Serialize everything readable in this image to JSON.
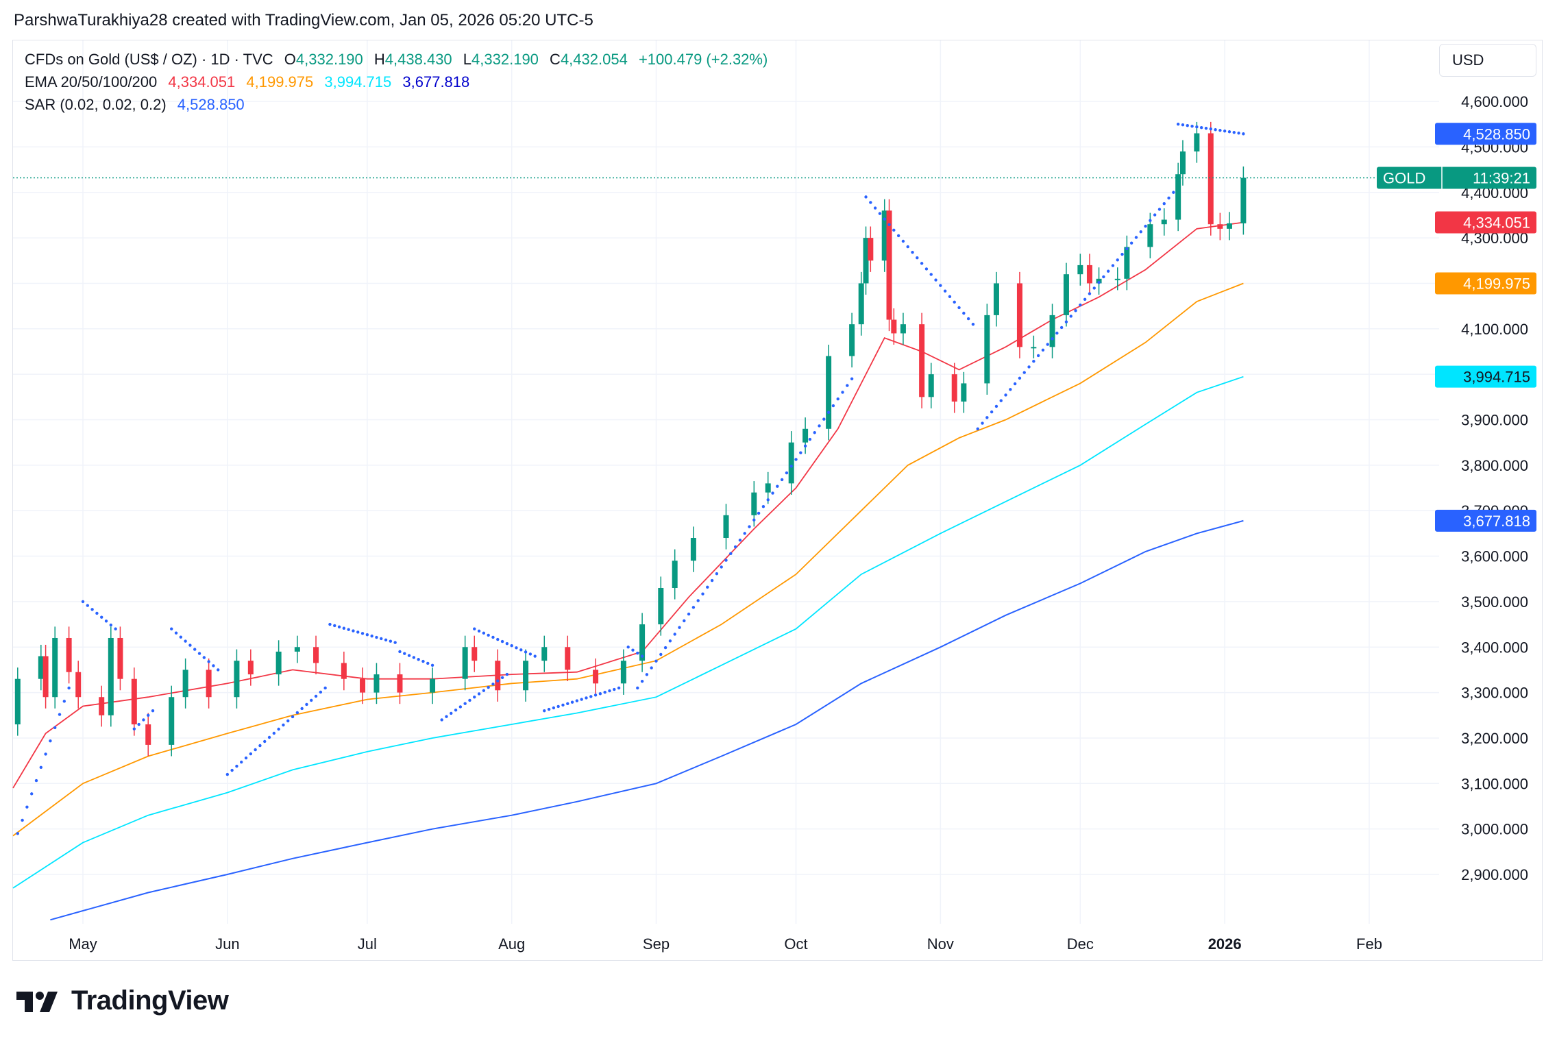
{
  "header": {
    "credit": "ParshwaTurakhiya28 created with TradingView.com, Jan 05, 2026 05:20 UTC-5"
  },
  "legend": {
    "symbol": "CFDs on Gold (US$ / OZ) · 1D · TVC",
    "open_label": "O",
    "open": "4,332.190",
    "high_label": "H",
    "high": "4,438.430",
    "low_label": "L",
    "low": "4,332.190",
    "close_label": "C",
    "close": "4,432.054",
    "change": "+100.479 (+2.32%)",
    "ema_label": "EMA 20/50/100/200",
    "ema20": "4,334.051",
    "ema50": "4,199.975",
    "ema100": "3,994.715",
    "ema200": "3,677.818",
    "sar_label": "SAR (0.02, 0.02, 0.2)",
    "sar": "4,528.850"
  },
  "currency_button": "USD",
  "logo_text": "TradingView",
  "colors": {
    "up": "#089981",
    "down": "#f23645",
    "ema20": "#f23645",
    "ema50": "#ff9800",
    "ema100": "#00e5ff",
    "ema200": "#2962ff",
    "sar": "#2962ff",
    "grid": "#f0f3fa"
  },
  "chart_data": {
    "type": "candlestick",
    "title": "CFDs on Gold (US$ / OZ) · 1D · TVC",
    "ylim": [
      2800,
      4650
    ],
    "y_ticks": [
      2900,
      3000,
      3100,
      3200,
      3300,
      3400,
      3500,
      3600,
      3700,
      3800,
      3900,
      4000,
      4100,
      4200,
      4300,
      4400,
      4500,
      4600
    ],
    "y_tick_labels": [
      "2,900.000",
      "3,000.000",
      "3,100.000",
      "3,200.000",
      "3,300.000",
      "3,400.000",
      "3,500.000",
      "3,600.000",
      "3,700.000",
      "3,800.000",
      "3,900.000",
      "4,000.000",
      "4,100.000",
      "4,200.000",
      "4,300.000",
      "4,400.000",
      "4,500.000",
      "4,600.000"
    ],
    "x_range": [
      "2025-04-16",
      "2026-02-16"
    ],
    "x_ticks": [
      {
        "date": "2025-05-01",
        "label": "May"
      },
      {
        "date": "2025-06-01",
        "label": "Jun"
      },
      {
        "date": "2025-07-01",
        "label": "Jul"
      },
      {
        "date": "2025-08-01",
        "label": "Aug"
      },
      {
        "date": "2025-09-01",
        "label": "Sep"
      },
      {
        "date": "2025-10-01",
        "label": "Oct"
      },
      {
        "date": "2025-11-01",
        "label": "Nov"
      },
      {
        "date": "2025-12-01",
        "label": "Dec"
      },
      {
        "date": "2026-01-01",
        "label": "2026"
      },
      {
        "date": "2026-02-01",
        "label": "Feb"
      }
    ],
    "grid": true,
    "close_series": [
      [
        "2025-04-16",
        3230
      ],
      [
        "2025-04-17",
        3330
      ],
      [
        "2025-04-22",
        3380
      ],
      [
        "2025-04-23",
        3290
      ],
      [
        "2025-04-25",
        3420
      ],
      [
        "2025-04-28",
        3345
      ],
      [
        "2025-04-30",
        3290
      ],
      [
        "2025-05-05",
        3250
      ],
      [
        "2025-05-07",
        3420
      ],
      [
        "2025-05-09",
        3330
      ],
      [
        "2025-05-12",
        3230
      ],
      [
        "2025-05-15",
        3185
      ],
      [
        "2025-05-20",
        3290
      ],
      [
        "2025-05-23",
        3350
      ],
      [
        "2025-05-28",
        3290
      ],
      [
        "2025-06-03",
        3370
      ],
      [
        "2025-06-06",
        3340
      ],
      [
        "2025-06-12",
        3390
      ],
      [
        "2025-06-16",
        3400
      ],
      [
        "2025-06-20",
        3365
      ],
      [
        "2025-06-26",
        3330
      ],
      [
        "2025-06-30",
        3300
      ],
      [
        "2025-07-03",
        3340
      ],
      [
        "2025-07-08",
        3300
      ],
      [
        "2025-07-15",
        3330
      ],
      [
        "2025-07-22",
        3400
      ],
      [
        "2025-07-24",
        3370
      ],
      [
        "2025-07-29",
        3305
      ],
      [
        "2025-08-04",
        3370
      ],
      [
        "2025-08-08",
        3400
      ],
      [
        "2025-08-13",
        3350
      ],
      [
        "2025-08-19",
        3320
      ],
      [
        "2025-08-25",
        3370
      ],
      [
        "2025-08-29",
        3450
      ],
      [
        "2025-09-02",
        3530
      ],
      [
        "2025-09-05",
        3590
      ],
      [
        "2025-09-09",
        3640
      ],
      [
        "2025-09-16",
        3690
      ],
      [
        "2025-09-22",
        3740
      ],
      [
        "2025-09-25",
        3760
      ],
      [
        "2025-09-30",
        3850
      ],
      [
        "2025-10-03",
        3880
      ],
      [
        "2025-10-08",
        4040
      ],
      [
        "2025-10-13",
        4110
      ],
      [
        "2025-10-15",
        4200
      ],
      [
        "2025-10-16",
        4300
      ],
      [
        "2025-10-17",
        4250
      ],
      [
        "2025-10-20",
        4360
      ],
      [
        "2025-10-21",
        4120
      ],
      [
        "2025-10-22",
        4090
      ],
      [
        "2025-10-24",
        4110
      ],
      [
        "2025-10-28",
        3950
      ],
      [
        "2025-10-30",
        4000
      ],
      [
        "2025-11-04",
        3940
      ],
      [
        "2025-11-06",
        3980
      ],
      [
        "2025-11-11",
        4130
      ],
      [
        "2025-11-13",
        4200
      ],
      [
        "2025-11-18",
        4060
      ],
      [
        "2025-11-21",
        4060
      ],
      [
        "2025-11-25",
        4130
      ],
      [
        "2025-11-28",
        4220
      ],
      [
        "2025-12-01",
        4240
      ],
      [
        "2025-12-03",
        4200
      ],
      [
        "2025-12-05",
        4210
      ],
      [
        "2025-12-09",
        4210
      ],
      [
        "2025-12-11",
        4280
      ],
      [
        "2025-12-16",
        4330
      ],
      [
        "2025-12-19",
        4340
      ],
      [
        "2025-12-22",
        4440
      ],
      [
        "2025-12-23",
        4490
      ],
      [
        "2025-12-26",
        4530
      ],
      [
        "2025-12-29",
        4330
      ],
      [
        "2025-12-31",
        4320
      ],
      [
        "2026-01-02",
        4332
      ],
      [
        "2026-01-05",
        4432
      ]
    ],
    "series": [
      {
        "name": "EMA 20",
        "color": "#f23645",
        "points": [
          [
            "2025-04-16",
            3090
          ],
          [
            "2025-04-23",
            3210
          ],
          [
            "2025-05-01",
            3270
          ],
          [
            "2025-05-15",
            3290
          ],
          [
            "2025-06-01",
            3320
          ],
          [
            "2025-06-15",
            3350
          ],
          [
            "2025-07-01",
            3330
          ],
          [
            "2025-07-15",
            3330
          ],
          [
            "2025-08-01",
            3340
          ],
          [
            "2025-08-15",
            3345
          ],
          [
            "2025-08-29",
            3390
          ],
          [
            "2025-09-08",
            3510
          ],
          [
            "2025-09-22",
            3660
          ],
          [
            "2025-10-01",
            3750
          ],
          [
            "2025-10-10",
            3880
          ],
          [
            "2025-10-20",
            4080
          ],
          [
            "2025-10-28",
            4050
          ],
          [
            "2025-11-05",
            4010
          ],
          [
            "2025-11-15",
            4060
          ],
          [
            "2025-11-25",
            4120
          ],
          [
            "2025-12-05",
            4170
          ],
          [
            "2025-12-15",
            4230
          ],
          [
            "2025-12-26",
            4320
          ],
          [
            "2026-01-05",
            4334.051
          ]
        ]
      },
      {
        "name": "EMA 50",
        "color": "#ff9800",
        "points": [
          [
            "2025-04-16",
            2985
          ],
          [
            "2025-05-01",
            3100
          ],
          [
            "2025-05-15",
            3160
          ],
          [
            "2025-06-01",
            3210
          ],
          [
            "2025-06-15",
            3250
          ],
          [
            "2025-07-01",
            3285
          ],
          [
            "2025-07-15",
            3300
          ],
          [
            "2025-08-01",
            3320
          ],
          [
            "2025-08-15",
            3330
          ],
          [
            "2025-09-01",
            3370
          ],
          [
            "2025-09-15",
            3450
          ],
          [
            "2025-10-01",
            3560
          ],
          [
            "2025-10-15",
            3700
          ],
          [
            "2025-10-25",
            3800
          ],
          [
            "2025-11-05",
            3860
          ],
          [
            "2025-11-15",
            3900
          ],
          [
            "2025-12-01",
            3980
          ],
          [
            "2025-12-15",
            4070
          ],
          [
            "2025-12-26",
            4160
          ],
          [
            "2026-01-05",
            4199.975
          ]
        ]
      },
      {
        "name": "EMA 100",
        "color": "#00e5ff",
        "points": [
          [
            "2025-04-16",
            2870
          ],
          [
            "2025-05-01",
            2970
          ],
          [
            "2025-05-15",
            3030
          ],
          [
            "2025-06-01",
            3080
          ],
          [
            "2025-06-15",
            3130
          ],
          [
            "2025-07-01",
            3170
          ],
          [
            "2025-07-15",
            3200
          ],
          [
            "2025-08-01",
            3230
          ],
          [
            "2025-08-15",
            3255
          ],
          [
            "2025-09-01",
            3290
          ],
          [
            "2025-09-15",
            3360
          ],
          [
            "2025-10-01",
            3440
          ],
          [
            "2025-10-15",
            3560
          ],
          [
            "2025-11-01",
            3650
          ],
          [
            "2025-11-15",
            3720
          ],
          [
            "2025-12-01",
            3800
          ],
          [
            "2025-12-15",
            3890
          ],
          [
            "2025-12-26",
            3960
          ],
          [
            "2026-01-05",
            3994.715
          ]
        ]
      },
      {
        "name": "EMA 200",
        "color": "#2962ff",
        "points": [
          [
            "2025-04-24",
            2800
          ],
          [
            "2025-05-15",
            2860
          ],
          [
            "2025-06-01",
            2900
          ],
          [
            "2025-06-15",
            2935
          ],
          [
            "2025-07-01",
            2970
          ],
          [
            "2025-07-15",
            3000
          ],
          [
            "2025-08-01",
            3030
          ],
          [
            "2025-08-15",
            3060
          ],
          [
            "2025-09-01",
            3100
          ],
          [
            "2025-09-15",
            3160
          ],
          [
            "2025-10-01",
            3230
          ],
          [
            "2025-10-15",
            3320
          ],
          [
            "2025-11-01",
            3400
          ],
          [
            "2025-11-15",
            3470
          ],
          [
            "2025-12-01",
            3540
          ],
          [
            "2025-12-15",
            3610
          ],
          [
            "2025-12-26",
            3650
          ],
          [
            "2026-01-05",
            3677.818
          ]
        ]
      }
    ],
    "sar_segments": [
      {
        "from": [
          "2025-04-17",
          2990
        ],
        "to": [
          "2025-04-28",
          3310
        ]
      },
      {
        "from": [
          "2025-05-01",
          3500
        ],
        "to": [
          "2025-05-08",
          3440
        ]
      },
      {
        "from": [
          "2025-05-12",
          3220
        ],
        "to": [
          "2025-05-16",
          3260
        ]
      },
      {
        "from": [
          "2025-05-20",
          3440
        ],
        "to": [
          "2025-05-30",
          3350
        ]
      },
      {
        "from": [
          "2025-06-01",
          3120
        ],
        "to": [
          "2025-06-22",
          3310
        ]
      },
      {
        "from": [
          "2025-06-23",
          3450
        ],
        "to": [
          "2025-07-07",
          3410
        ]
      },
      {
        "from": [
          "2025-07-08",
          3390
        ],
        "to": [
          "2025-07-15",
          3360
        ]
      },
      {
        "from": [
          "2025-07-17",
          3240
        ],
        "to": [
          "2025-07-31",
          3340
        ]
      },
      {
        "from": [
          "2025-07-24",
          3440
        ],
        "to": [
          "2025-08-06",
          3380
        ]
      },
      {
        "from": [
          "2025-08-08",
          3260
        ],
        "to": [
          "2025-08-24",
          3310
        ]
      },
      {
        "from": [
          "2025-08-26",
          3400
        ],
        "to": [
          "2025-08-29",
          3380
        ]
      },
      {
        "from": [
          "2025-08-28",
          3310
        ],
        "to": [
          "2025-10-13",
          3990
        ]
      },
      {
        "from": [
          "2025-10-16",
          4390
        ],
        "to": [
          "2025-11-08",
          4110
        ]
      },
      {
        "from": [
          "2025-11-09",
          3880
        ],
        "to": [
          "2025-12-21",
          4400
        ]
      },
      {
        "from": [
          "2025-12-22",
          4550
        ],
        "to": [
          "2026-01-05",
          4528.85
        ]
      }
    ],
    "price_labels": [
      {
        "value": 4528.85,
        "text": "4,528.850",
        "color": "#2962ff"
      },
      {
        "value": 4334.051,
        "text": "4,334.051",
        "color": "#f23645"
      },
      {
        "value": 4199.975,
        "text": "4,199.975",
        "color": "#ff9800"
      },
      {
        "value": 3994.715,
        "text": "3,994.715",
        "color": "#00e5ff"
      },
      {
        "value": 3677.818,
        "text": "3,677.818",
        "color": "#2962ff"
      }
    ],
    "current_price": {
      "value": 4432.054,
      "symbol": "GOLD",
      "countdown": "11:39:21"
    }
  }
}
